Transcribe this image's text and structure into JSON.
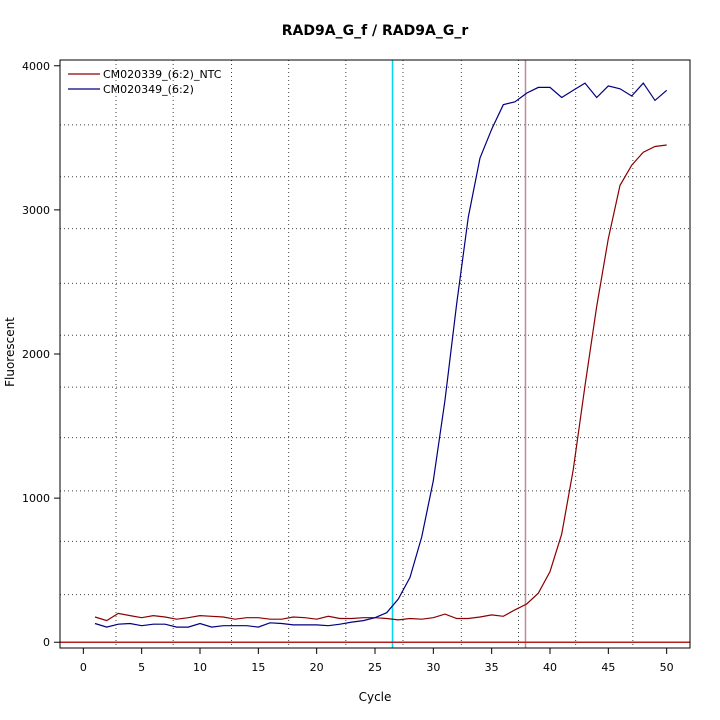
{
  "chart_data": {
    "type": "line",
    "title": "RAD9A_G_f / RAD9A_G_r",
    "xlabel": "Cycle",
    "ylabel": "Fluorescent",
    "xlim": [
      -2,
      52
    ],
    "ylim": [
      -40,
      4040
    ],
    "xticks": [
      0,
      5,
      10,
      15,
      20,
      25,
      30,
      35,
      40,
      45,
      50
    ],
    "yticks": [
      0,
      1000,
      2000,
      3000,
      4000
    ],
    "legend_position": "top-left",
    "grid": true,
    "grid_x": [
      2.8,
      7.7,
      12.7,
      17.6,
      22.5,
      27.4,
      32.4,
      37.3,
      42.2,
      47.1
    ],
    "grid_y": [
      330,
      700,
      1050,
      1420,
      1770,
      2130,
      2490,
      2870,
      3230,
      3590
    ],
    "threshold_line": {
      "value": 0,
      "color": "#b22222"
    },
    "vlines": [
      {
        "x": 26.5,
        "color": "#00d8ee"
      },
      {
        "x": 37.9,
        "color": "#c48a96"
      }
    ],
    "series": [
      {
        "name": "CM020339_(6:2)_NTC",
        "color": "#8b0000",
        "x": [
          1,
          2,
          3,
          4,
          5,
          6,
          7,
          8,
          9,
          10,
          11,
          12,
          13,
          14,
          15,
          16,
          17,
          18,
          19,
          20,
          21,
          22,
          23,
          24,
          25,
          26,
          27,
          28,
          29,
          30,
          31,
          32,
          33,
          34,
          35,
          36,
          37,
          38,
          39,
          40,
          41,
          42,
          43,
          44,
          45,
          46,
          47,
          48,
          49,
          50
        ],
        "values": [
          175,
          150,
          200,
          185,
          170,
          185,
          175,
          160,
          170,
          185,
          180,
          175,
          160,
          170,
          170,
          160,
          160,
          175,
          170,
          160,
          180,
          165,
          165,
          170,
          170,
          165,
          155,
          165,
          160,
          170,
          195,
          165,
          165,
          175,
          190,
          180,
          225,
          265,
          340,
          490,
          750,
          1200,
          1780,
          2330,
          2800,
          3170,
          3310,
          3400,
          3440,
          3450
        ]
      },
      {
        "name": "CM020349_(6:2)",
        "color": "#000080",
        "x": [
          1,
          2,
          3,
          4,
          5,
          6,
          7,
          8,
          9,
          10,
          11,
          12,
          13,
          14,
          15,
          16,
          17,
          18,
          19,
          20,
          21,
          22,
          23,
          24,
          25,
          26,
          27,
          28,
          29,
          30,
          31,
          32,
          33,
          34,
          35,
          36,
          37,
          38,
          39,
          40,
          41,
          42,
          43,
          44,
          45,
          46,
          47,
          48,
          49,
          50
        ],
        "values": [
          130,
          105,
          125,
          130,
          115,
          125,
          125,
          105,
          105,
          130,
          105,
          115,
          115,
          115,
          105,
          135,
          130,
          120,
          120,
          120,
          115,
          125,
          140,
          150,
          170,
          205,
          300,
          450,
          730,
          1120,
          1680,
          2350,
          2950,
          3360,
          3560,
          3730,
          3750,
          3810,
          3850,
          3850,
          3780,
          3830,
          3880,
          3780,
          3860,
          3840,
          3790,
          3880,
          3760,
          3830
        ]
      }
    ]
  }
}
